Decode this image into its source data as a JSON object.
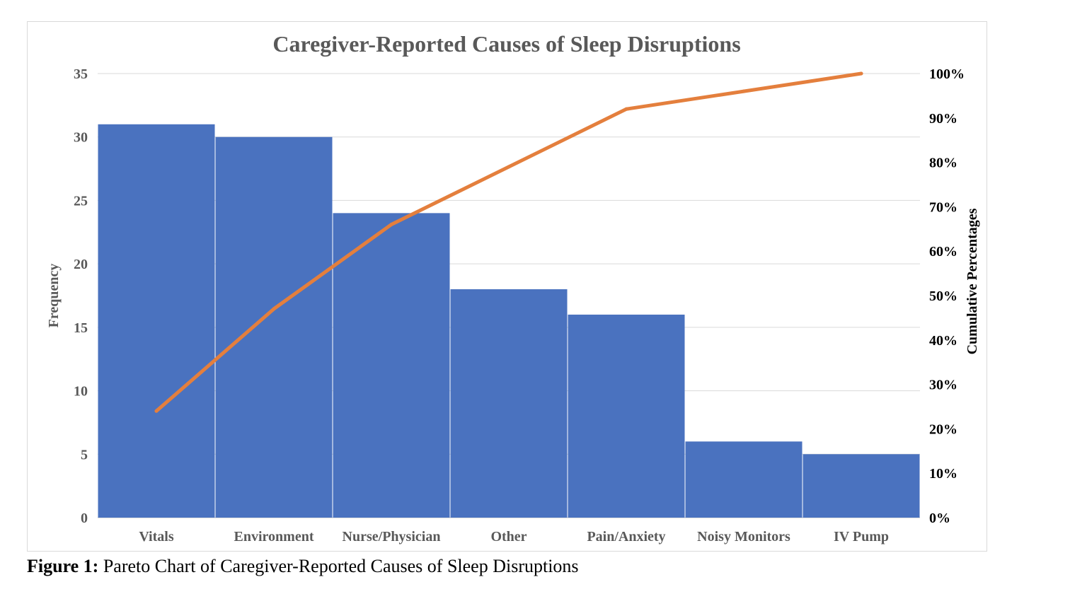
{
  "chart_data": {
    "type": "bar",
    "title": "Caregiver-Reported Causes of Sleep Disruptions",
    "categories": [
      "Vitals",
      "Environment",
      "Nurse/Physician",
      "Other",
      "Pain/Anxiety",
      "Noisy Monitors",
      "IV Pump"
    ],
    "series": [
      {
        "type": "bar",
        "axis": "left",
        "color": "#4a72bf",
        "values": [
          31,
          30,
          24,
          18,
          16,
          6,
          5
        ]
      },
      {
        "type": "line",
        "axis": "right",
        "color": "#e47f3d",
        "values": [
          24,
          47,
          66,
          79,
          92,
          96,
          100
        ]
      }
    ],
    "ylabel": "Frequency",
    "ylim": [
      0,
      35
    ],
    "yticks": [
      "0",
      "5",
      "10",
      "15",
      "20",
      "25",
      "30",
      "35"
    ],
    "y2label": "Cumulative Percentages",
    "y2lim": [
      0,
      100
    ],
    "y2ticks": [
      "0%",
      "10%",
      "20%",
      "30%",
      "40%",
      "50%",
      "60%",
      "70%",
      "80%",
      "90%",
      "100%"
    ],
    "grid": true,
    "legend": "none"
  },
  "caption": {
    "lead": "Figure 1:",
    "text": " Pareto Chart of Caregiver-Reported Causes of Sleep Disruptions"
  }
}
